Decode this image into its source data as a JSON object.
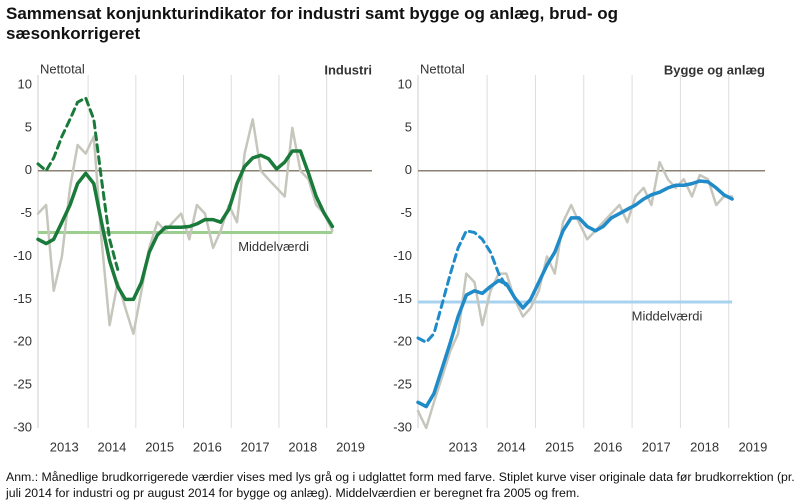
{
  "title": "Sammensat konjunkturindikator for industri samt bygge og anlæg, brud- og sæsonkorrigeret",
  "note": "Anm.: Månedlige brudkorrigerede værdier vises med lys grå og i udglattet form med farve. Stiplet kurve viser originale data før brudkorrektion (pr. juli 2014 for industri og pr august 2014 for bygge og anlæg). Middelværdien er beregnet fra 2005 og frem.",
  "chart_data": [
    {
      "type": "line",
      "title": "Industri",
      "ylabel": "Nettotal",
      "x": [
        2012.45,
        2012.62,
        2012.78,
        2012.95,
        2013.12,
        2013.28,
        2013.45,
        2013.62,
        2013.78,
        2013.95,
        2014.12,
        2014.28,
        2014.45,
        2014.62,
        2014.78,
        2014.95,
        2015.12,
        2015.28,
        2015.45,
        2015.62,
        2015.78,
        2015.95,
        2016.12,
        2016.28,
        2016.45,
        2016.62,
        2016.78,
        2016.95,
        2017.12,
        2017.28,
        2017.45,
        2017.62,
        2017.78,
        2017.95,
        2018.12,
        2018.28,
        2018.45,
        2018.62
      ],
      "xlim": [
        2012.45,
        2019.45
      ],
      "xticks": [
        2013,
        2014,
        2015,
        2016,
        2017,
        2018,
        2019
      ],
      "ylim": [
        -30,
        10
      ],
      "yticks": [
        -30,
        -25,
        -20,
        -15,
        -10,
        -5,
        0,
        5,
        10
      ],
      "zero_line": true,
      "reference_line": {
        "value": -7.2,
        "label": "Middelværdi",
        "color": "#9ccf8f"
      },
      "series": [
        {
          "color": "#c6c6bd",
          "style": "solid",
          "width": 2.5,
          "values": [
            -5,
            -4,
            -14,
            -10,
            -2,
            3,
            2,
            4,
            -8,
            -18,
            -13,
            -16,
            -19,
            -14,
            -9,
            -6,
            -7,
            -6,
            -5,
            -8,
            -4,
            -5,
            -9,
            -7,
            -4,
            -6,
            2,
            6,
            0,
            -1,
            -2,
            -3,
            5,
            0,
            -1,
            -4,
            -5,
            -7
          ]
        },
        {
          "color": "#1a7a3a",
          "style": "dashed",
          "width": 3,
          "values": [
            0.8,
            0,
            1.5,
            4,
            6,
            8,
            8.5,
            6,
            -1,
            -8,
            -11.5,
            null,
            null,
            null,
            null,
            null,
            null,
            null,
            null,
            null,
            null,
            null,
            null,
            null,
            null,
            null,
            null,
            null,
            null,
            null,
            null,
            null,
            null,
            null,
            null,
            null,
            null,
            null
          ]
        },
        {
          "color": "#1a7a3a",
          "style": "solid",
          "width": 3.5,
          "values": [
            -8,
            -8.5,
            -8,
            -6,
            -4,
            -1.5,
            -0.3,
            -1.5,
            -6,
            -10.5,
            -13.5,
            -15,
            -15,
            -13,
            -9.5,
            -7.5,
            -6.6,
            -6.6,
            -6.6,
            -6.5,
            -6.2,
            -5.7,
            -5.7,
            -6,
            -4.5,
            -1.5,
            0.5,
            1.5,
            1.8,
            1.4,
            0.2,
            1,
            2.3,
            2.3,
            -0.3,
            -3,
            -5,
            -6.5
          ]
        }
      ]
    },
    {
      "type": "line",
      "title": "Bygge og anlæg",
      "ylabel": "Nettotal",
      "x": [
        2012.07,
        2012.24,
        2012.4,
        2012.57,
        2012.74,
        2012.9,
        2013.07,
        2013.24,
        2013.4,
        2013.57,
        2013.74,
        2013.9,
        2014.07,
        2014.24,
        2014.4,
        2014.57,
        2014.74,
        2014.9,
        2015.07,
        2015.24,
        2015.4,
        2015.57,
        2015.74,
        2015.9,
        2016.07,
        2016.24,
        2016.4,
        2016.57,
        2016.74,
        2016.9,
        2017.07,
        2017.24,
        2017.4,
        2017.57,
        2017.74,
        2017.9,
        2018.07,
        2018.24,
        2018.4,
        2018.57
      ],
      "xlim": [
        2012.07,
        2019.25
      ],
      "xticks": [
        2013,
        2014,
        2015,
        2016,
        2017,
        2018,
        2019
      ],
      "ylim": [
        -30,
        10
      ],
      "yticks": [
        -30,
        -25,
        -20,
        -15,
        -10,
        -5,
        0,
        5,
        10
      ],
      "zero_line": true,
      "reference_line": {
        "value": -15.3,
        "label": "Middelværdi",
        "color": "#a7d3ef"
      },
      "series": [
        {
          "color": "#c6c6bd",
          "style": "solid",
          "width": 2.5,
          "values": [
            -28,
            -30,
            -27,
            -24,
            -21,
            -19,
            -12,
            -13,
            -18,
            -14,
            -12,
            -12,
            -15,
            -17,
            -16,
            -14,
            -10,
            -12,
            -6,
            -4,
            -6,
            -8,
            -7,
            -6,
            -5,
            -4,
            -6,
            -3,
            -2,
            -4,
            1,
            -1,
            -2,
            -1,
            -3,
            -0.5,
            -1,
            -4,
            -3,
            -3
          ]
        },
        {
          "color": "#1f8bc9",
          "style": "dashed",
          "width": 3,
          "values": [
            -19.5,
            -20,
            -19,
            -15.5,
            -12,
            -9,
            -7,
            -7.2,
            -8,
            -9.5,
            -12,
            -13.5,
            null,
            null,
            null,
            null,
            null,
            null,
            null,
            null,
            null,
            null,
            null,
            null,
            null,
            null,
            null,
            null,
            null,
            null,
            null,
            null,
            null,
            null,
            null,
            null,
            null,
            null,
            null,
            null
          ]
        },
        {
          "color": "#1f8bc9",
          "style": "solid",
          "width": 3.5,
          "values": [
            -27,
            -27.5,
            -26,
            -23,
            -20,
            -17,
            -14.5,
            -14,
            -14.3,
            -13.5,
            -12.8,
            -13.2,
            -14.8,
            -16,
            -15,
            -13,
            -11,
            -9.5,
            -7,
            -5.5,
            -5.5,
            -6.5,
            -7,
            -6.5,
            -5.5,
            -5,
            -4.5,
            -4,
            -3.3,
            -2.8,
            -2.5,
            -2,
            -1.7,
            -1.7,
            -1.5,
            -1.2,
            -1.3,
            -2,
            -2.8,
            -3.3
          ]
        }
      ]
    }
  ]
}
